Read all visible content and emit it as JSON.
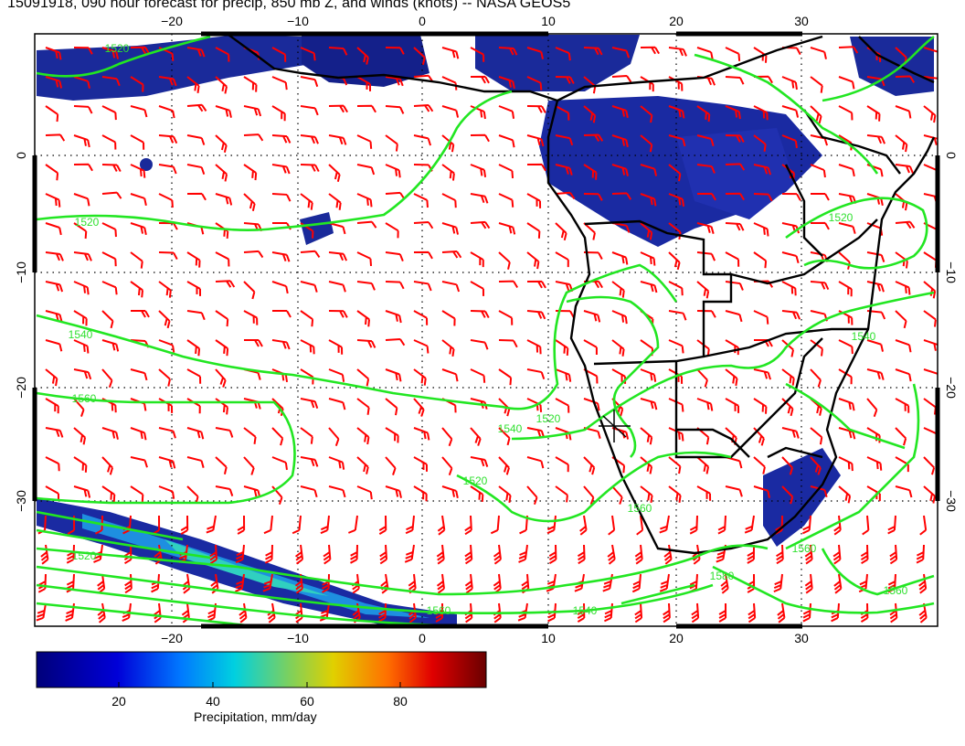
{
  "title": "15091918, 090 hour forecast for precip, 850 mb Z, and winds (knots) -- NASA GEOS5",
  "axes": {
    "lon_ticks": [
      "−20",
      "−10",
      "0",
      "10",
      "20",
      "30"
    ],
    "lat_ticks": [
      "0",
      "−10",
      "−20",
      "−30"
    ]
  },
  "contour_labels": [
    "1520",
    "1520",
    "1540",
    "1560",
    "1520",
    "1540",
    "1520",
    "1520",
    "1560",
    "1540",
    "1560",
    "1560",
    "1560",
    "1580",
    "1520",
    "1540"
  ],
  "colorbar": {
    "ticks": [
      "20",
      "40",
      "60",
      "80"
    ],
    "label": "Precipitation, mm/day"
  },
  "colors": {
    "wind_barbs": "#ff0000",
    "contours": "#22e622",
    "coastline": "#000000",
    "precip_low": "#0a1a8a",
    "precip_high": "#6a0000"
  }
}
